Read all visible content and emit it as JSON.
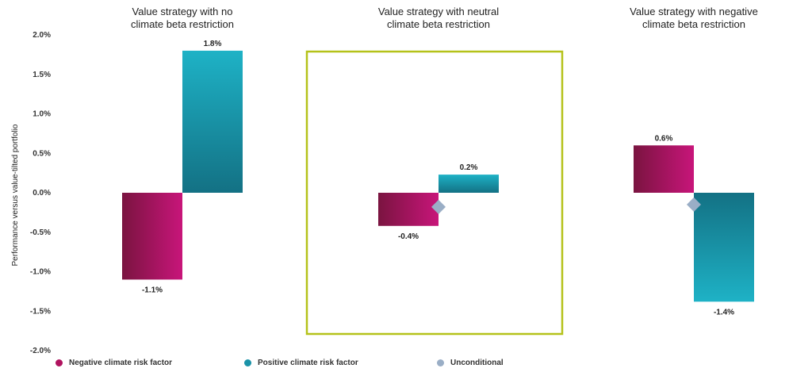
{
  "chart_data": {
    "type": "bar",
    "ylabel": "Performance versus value-tilted portfolio",
    "ylim": [
      -2.0,
      2.0
    ],
    "yticks": [
      "2.0%",
      "1.5%",
      "1.0%",
      "0.5%",
      "0.0%",
      "-0.5%",
      "-1.0%",
      "-1.5%",
      "-2.0%"
    ],
    "ytick_values": [
      2.0,
      1.5,
      1.0,
      0.5,
      0.0,
      -0.5,
      -1.0,
      -1.5,
      -2.0
    ],
    "panels": [
      {
        "title_line1": "Value strategy with no",
        "title_line2": "climate beta restriction",
        "highlighted": false,
        "values": {
          "negative": -1.1,
          "positive": 1.8,
          "unconditional": null
        },
        "labels": {
          "negative": "-1.1%",
          "positive": "1.8%"
        }
      },
      {
        "title_line1": "Value strategy with neutral",
        "title_line2": "climate beta restriction",
        "highlighted": true,
        "values": {
          "negative": -0.42,
          "positive": 0.23,
          "unconditional": -0.18
        },
        "labels": {
          "negative": "-0.4%",
          "positive": "0.2%"
        }
      },
      {
        "title_line1": "Value strategy with negative",
        "title_line2": "climate beta restriction",
        "highlighted": false,
        "values": {
          "negative": 0.6,
          "positive": -1.38,
          "unconditional": -0.15
        },
        "labels": {
          "negative": "0.6%",
          "positive": "-1.4%"
        }
      }
    ],
    "series": [
      {
        "key": "negative",
        "name": "Negative climate risk factor",
        "color": "#b0135f"
      },
      {
        "key": "positive",
        "name": "Positive climate risk factor",
        "color": "#1a93a8"
      },
      {
        "key": "unconditional",
        "name": "Unconditional",
        "color": "#9aaec6"
      }
    ],
    "highlight_color": "#b5c21a"
  },
  "legend": {
    "negative": "Negative climate risk factor",
    "positive": "Positive climate risk factor",
    "unconditional": "Unconditional"
  }
}
